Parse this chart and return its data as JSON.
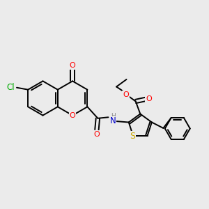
{
  "bg_color": "#ebebeb",
  "bond_color": "#000000",
  "atom_colors": {
    "O": "#ff0000",
    "N": "#0000cd",
    "S": "#ccaa00",
    "Cl": "#00aa00",
    "H": "#777777",
    "C": "#000000"
  },
  "figsize": [
    3.0,
    3.0
  ],
  "dpi": 100
}
